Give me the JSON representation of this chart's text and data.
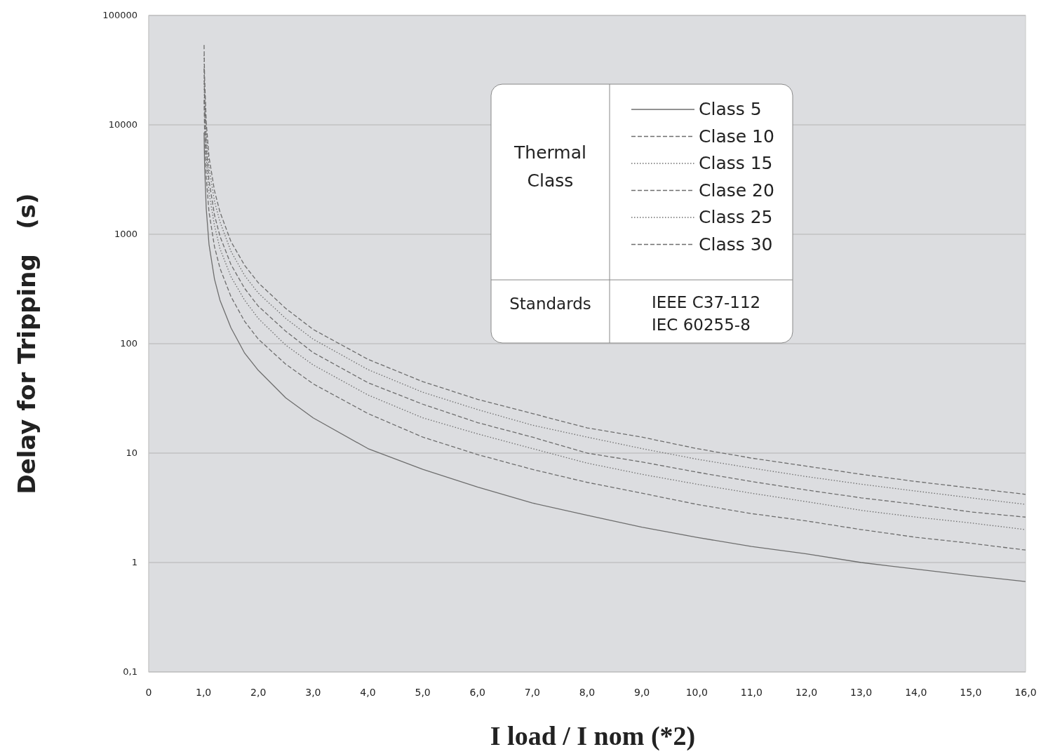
{
  "chart_data": {
    "type": "line",
    "xlabel": "I load / I nom (*2)",
    "ylabel": "Delay for Tripping   (s)",
    "legend_title": "Thermal Class",
    "legend": "top right",
    "grid": "y",
    "log": "y",
    "xlim": [
      0,
      16
    ],
    "ylim": [
      0.1,
      100000
    ],
    "xticks": [
      0,
      {
        "value": 1,
        "label": "1,0"
      },
      {
        "value": 2,
        "label": "2,0"
      },
      {
        "value": 3,
        "label": "3,0"
      },
      {
        "value": 4,
        "label": "4,0"
      },
      {
        "value": 5,
        "label": "5,0"
      },
      {
        "value": 6,
        "label": "6,0"
      },
      {
        "value": 7,
        "label": "7,0"
      },
      {
        "value": 8,
        "label": "8,0"
      },
      {
        "value": 9,
        "label": "9,0"
      },
      {
        "value": 10,
        "label": "10,0"
      },
      {
        "value": 11,
        "label": "11,0"
      },
      {
        "value": 12,
        "label": "12,0"
      },
      {
        "value": 13,
        "label": "13,0"
      },
      {
        "value": 14,
        "label": "14,0"
      },
      {
        "value": 15,
        "label": "15,0"
      },
      {
        "value": 16,
        "label": "16,0"
      }
    ],
    "yticks": [
      {
        "value": 0.1,
        "label": "0,1"
      },
      1,
      10,
      100,
      1000,
      10000,
      100000
    ],
    "x": [
      1.01,
      1.02,
      1.05,
      1.1,
      1.2,
      1.3,
      1.5,
      1.75,
      2,
      2.5,
      3,
      4,
      5,
      6,
      7,
      8,
      9,
      10,
      11,
      12,
      13,
      14,
      15,
      16
    ],
    "series": [
      {
        "name": "Class 5",
        "color": "#6e6e6e",
        "line_style": "solid",
        "values": [
          8500,
          4200,
          1700,
          810,
          390,
          250,
          140,
          82,
          57,
          32,
          21,
          11,
          7.1,
          4.9,
          3.5,
          2.7,
          2.1,
          1.7,
          1.4,
          1.2,
          1.0,
          0.87,
          0.76,
          0.67
        ]
      },
      {
        "name": "Clase 10",
        "color": "#6e6e6e",
        "line_style": "dashed",
        "values": [
          16900,
          8400,
          3300,
          1600,
          770,
          490,
          270,
          160,
          110,
          65,
          43,
          23,
          14,
          9.7,
          7.1,
          5.4,
          4.3,
          3.4,
          2.8,
          2.4,
          2.0,
          1.7,
          1.5,
          1.3
        ]
      },
      {
        "name": "Class 15",
        "color": "#6e6e6e",
        "line_style": "dotted",
        "values": [
          25400,
          12600,
          5000,
          2400,
          1200,
          740,
          410,
          250,
          170,
          97,
          64,
          34,
          21,
          15,
          11,
          8.1,
          6.4,
          5.2,
          4.3,
          3.6,
          3.0,
          2.6,
          2.3,
          2.0
        ]
      },
      {
        "name": "Clase 20",
        "color": "#6e6e6e",
        "line_style": "dashed",
        "values": [
          32800,
          16300,
          6400,
          3100,
          1500,
          960,
          530,
          320,
          220,
          130,
          83,
          44,
          28,
          19,
          14,
          10,
          8.3,
          6.7,
          5.5,
          4.6,
          3.9,
          3.4,
          2.9,
          2.6
        ]
      },
      {
        "name": "Class 25",
        "color": "#6e6e6e",
        "line_style": "dotted",
        "values": [
          43300,
          21500,
          8500,
          4100,
          2000,
          1300,
          700,
          420,
          290,
          170,
          110,
          58,
          36,
          25,
          18,
          14,
          11,
          8.8,
          7.3,
          6.1,
          5.2,
          4.5,
          3.9,
          3.4
        ]
      },
      {
        "name": "Class 30",
        "color": "#6e6e6e",
        "line_style": "dashed",
        "values": [
          53700,
          26700,
          10500,
          5100,
          2500,
          1600,
          860,
          520,
          360,
          210,
          135,
          72,
          45,
          31,
          23,
          17,
          14,
          11,
          9.0,
          7.6,
          6.4,
          5.5,
          4.8,
          4.2
        ]
      }
    ],
    "annotations": [
      "Standards",
      "IEEE C37-112",
      "IEC 60255-8"
    ]
  }
}
